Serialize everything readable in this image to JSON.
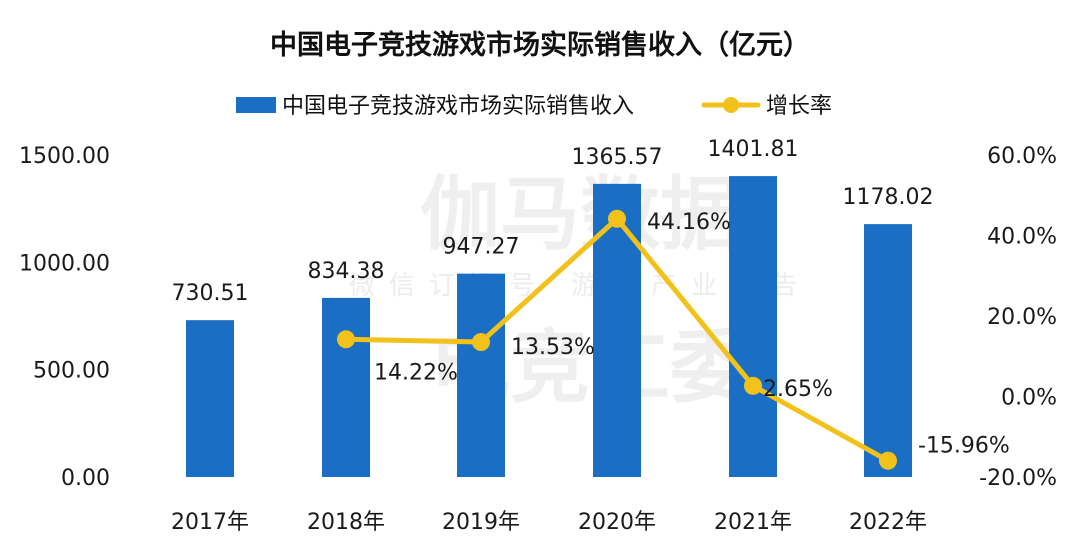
{
  "chart_data": {
    "type": "bar",
    "title": "中国电子竞技游戏市场实际销售收入（亿元）",
    "categories": [
      "2017年",
      "2018年",
      "2019年",
      "2020年",
      "2021年",
      "2022年"
    ],
    "series": [
      {
        "name": "中国电子竞技游戏市场实际销售收入",
        "kind": "bar",
        "axis": "left",
        "color": "#1a6fc4",
        "values": [
          730.51,
          834.38,
          947.27,
          1365.57,
          1401.81,
          1178.02
        ],
        "labels": [
          "730.51",
          "834.38",
          "947.27",
          "1365.57",
          "1401.81",
          "1178.02"
        ]
      },
      {
        "name": "增长率",
        "kind": "line",
        "axis": "right",
        "color": "#f2c21b",
        "values": [
          null,
          14.22,
          13.53,
          44.16,
          2.65,
          -15.96
        ],
        "labels": [
          "",
          "14.22%",
          "13.53%",
          "44.16%",
          "2.65%",
          "-15.96%"
        ]
      }
    ],
    "y_left": {
      "ylim": [
        0,
        1500
      ],
      "ticks": [
        "0.00",
        "500.00",
        "1000.00",
        "1500.00"
      ],
      "tick_values": [
        0,
        500,
        1000,
        1500
      ]
    },
    "y_right": {
      "ylim": [
        -20,
        60
      ],
      "ticks": [
        "-20.0%",
        "0.0%",
        "20.0%",
        "40.0%",
        "60.0%"
      ],
      "tick_values": [
        -20,
        0,
        20,
        40,
        60
      ]
    },
    "legend_position": "top-center",
    "grid": false
  },
  "watermark": {
    "line1": "伽马数据",
    "line2": "微信订阅号 游戏产业报告",
    "line3": "电竞工委"
  }
}
